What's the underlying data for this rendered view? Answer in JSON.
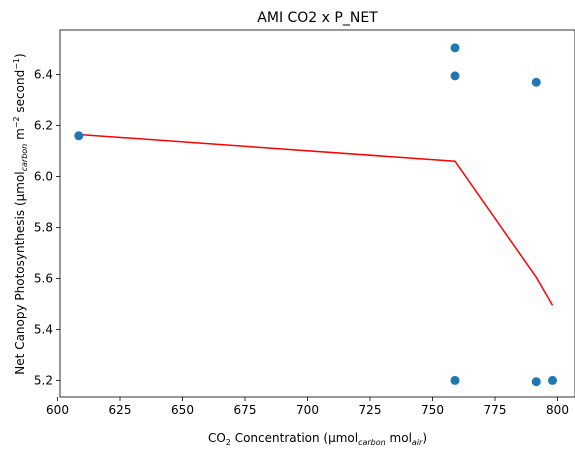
{
  "chart_data": {
    "type": "scatter",
    "title": "AMI CO2 x P_NET",
    "xlabel": {
      "prefix": "CO",
      "sub": "2",
      "middle": " Concentration (μmol",
      "carbon": "carbon",
      "mol": " mol",
      "air": "air",
      "suffix": ")"
    },
    "ylabel": {
      "prefix": "Net Canopy Photosynthesis (μmol",
      "carbon": "carbon",
      "m": " m",
      "exp1": "−2",
      "second": " second",
      "exp2": "−1",
      "suffix": ")"
    },
    "xlim": [
      601,
      807
    ],
    "ylim": [
      5.135,
      6.575
    ],
    "xticks": [
      600,
      625,
      650,
      675,
      700,
      725,
      750,
      775,
      800
    ],
    "xtick_labels": [
      "600",
      "625",
      "650",
      "675",
      "700",
      "725",
      "750",
      "775",
      "800"
    ],
    "yticks": [
      5.2,
      5.4,
      5.6,
      5.8,
      6.0,
      6.2,
      6.4
    ],
    "ytick_labels": [
      "5.2",
      "5.4",
      "5.6",
      "5.8",
      "6.0",
      "6.2",
      "6.4"
    ],
    "grid": false,
    "points": {
      "color": "#1f77b4",
      "x": [
        608.5,
        759,
        759,
        759,
        791.5,
        791.5,
        798
      ],
      "y": [
        6.16,
        6.505,
        6.395,
        5.2,
        6.37,
        5.195,
        5.2
      ]
    },
    "fit_line": {
      "color": "#ff0000",
      "x": [
        608.5,
        759,
        791.5,
        798
      ],
      "y": [
        6.165,
        6.06,
        5.605,
        5.495
      ]
    }
  }
}
